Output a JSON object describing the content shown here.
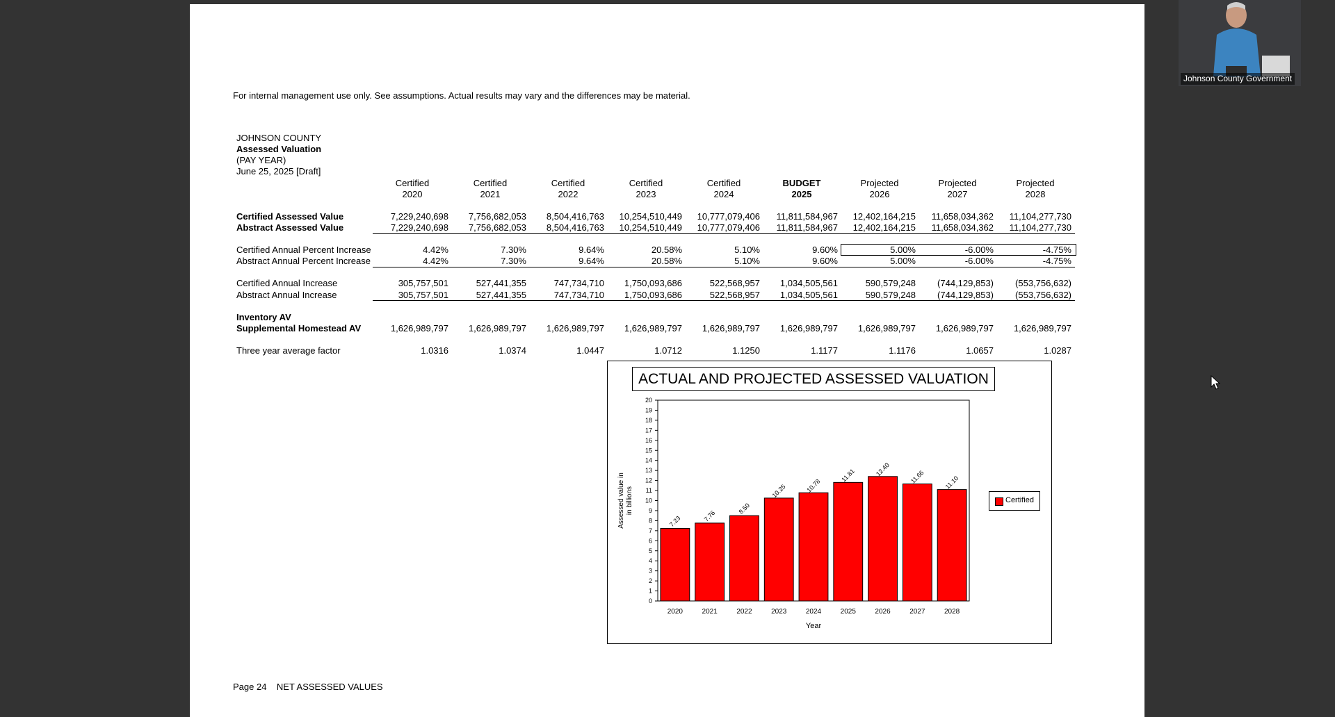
{
  "page": {
    "disclaimer": "For internal management use only.  See assumptions.  Actual results may vary and the differences may be material.",
    "org": "JOHNSON COUNTY",
    "report_title": "Assessed Valuation",
    "report_sub": "(PAY YEAR)",
    "report_date": "June 25, 2025 [Draft]",
    "footer": "Page 24    NET ASSESSED VALUES"
  },
  "table": {
    "columns": [
      {
        "top": "Certified",
        "bottom": "2020",
        "bold": false
      },
      {
        "top": "Certified",
        "bottom": "2021",
        "bold": false
      },
      {
        "top": "Certified",
        "bottom": "2022",
        "bold": false
      },
      {
        "top": "Certified",
        "bottom": "2023",
        "bold": false
      },
      {
        "top": "Certified",
        "bottom": "2024",
        "bold": false
      },
      {
        "top": "BUDGET",
        "bottom": "2025",
        "bold": true
      },
      {
        "top": "Projected",
        "bottom": "2026",
        "bold": false
      },
      {
        "top": "Projected",
        "bottom": "2027",
        "bold": false
      },
      {
        "top": "Projected",
        "bottom": "2028",
        "bold": false
      }
    ],
    "rows": [
      {
        "label": "Certified Assessed Value",
        "bold": true,
        "values": [
          "7,229,240,698",
          "7,756,682,053",
          "8,504,416,763",
          "10,254,510,449",
          "10,777,079,406",
          "11,811,584,967",
          "12,402,164,215",
          "11,658,034,362",
          "11,104,277,730"
        ]
      },
      {
        "label": "Abstract Assessed Value",
        "bold": true,
        "values": [
          "7,229,240,698",
          "7,756,682,053",
          "8,504,416,763",
          "10,254,510,449",
          "10,777,079,406",
          "11,811,584,967",
          "12,402,164,215",
          "11,658,034,362",
          "11,104,277,730"
        ]
      },
      {
        "label": "Certified Annual Percent Increase",
        "bold": false,
        "values": [
          "4.42%",
          "7.30%",
          "9.64%",
          "20.58%",
          "5.10%",
          "9.60%",
          "5.00%",
          "-6.00%",
          "-4.75%"
        ]
      },
      {
        "label": "Abstract Annual Percent Increase",
        "bold": false,
        "values": [
          "4.42%",
          "7.30%",
          "9.64%",
          "20.58%",
          "5.10%",
          "9.60%",
          "5.00%",
          "-6.00%",
          "-4.75%"
        ]
      },
      {
        "label": "Certified Annual Increase",
        "bold": false,
        "values": [
          "305,757,501",
          "527,441,355",
          "747,734,710",
          "1,750,093,686",
          "522,568,957",
          "1,034,505,561",
          "590,579,248",
          "(744,129,853)",
          "(553,756,632)"
        ]
      },
      {
        "label": "Abstract Annual Increase",
        "bold": false,
        "values": [
          "305,757,501",
          "527,441,355",
          "747,734,710",
          "1,750,093,686",
          "522,568,957",
          "1,034,505,561",
          "590,579,248",
          "(744,129,853)",
          "(553,756,632)"
        ]
      },
      {
        "label": "Inventory AV",
        "bold": true,
        "values": []
      },
      {
        "label": "Supplemental Homestead AV",
        "bold": true,
        "values": [
          "1,626,989,797",
          "1,626,989,797",
          "1,626,989,797",
          "1,626,989,797",
          "1,626,989,797",
          "1,626,989,797",
          "1,626,989,797",
          "1,626,989,797",
          "1,626,989,797"
        ]
      },
      {
        "label": "Three year average factor",
        "bold": false,
        "values": [
          "1.0316",
          "1.0374",
          "1.0447",
          "1.0712",
          "1.1250",
          "1.1177",
          "1.1176",
          "1.0657",
          "1.0287"
        ]
      }
    ]
  },
  "chart_data": {
    "type": "bar",
    "title": "ACTUAL AND PROJECTED ASSESSED VALUATION",
    "xlabel": "Year",
    "ylabel": "Assessed value in in billions",
    "ylabel_lines": [
      "Assessed value in",
      "in billions"
    ],
    "categories": [
      "2020",
      "2021",
      "2022",
      "2023",
      "2024",
      "2025",
      "2026",
      "2027",
      "2028"
    ],
    "series": [
      {
        "name": "Certified",
        "values": [
          7.23,
          7.76,
          8.5,
          10.25,
          10.78,
          11.81,
          12.4,
          11.66,
          11.1
        ],
        "labels": [
          "7.23",
          "7.76",
          "8.50",
          "10.25",
          "10.78",
          "11.81",
          "12.40",
          "11.66",
          "11.10"
        ]
      }
    ],
    "yticks": [
      "0",
      "1",
      "2",
      "3",
      "4",
      "5",
      "6",
      "7",
      "8",
      "9",
      "10",
      "11",
      "12",
      "13",
      "14",
      "15",
      "16",
      "17",
      "18",
      "19",
      "20"
    ],
    "ylim": [
      0,
      20
    ],
    "legend_position": "right",
    "bar_color": "#ff0000"
  },
  "video": {
    "participant_name": "Johnson County Government"
  }
}
